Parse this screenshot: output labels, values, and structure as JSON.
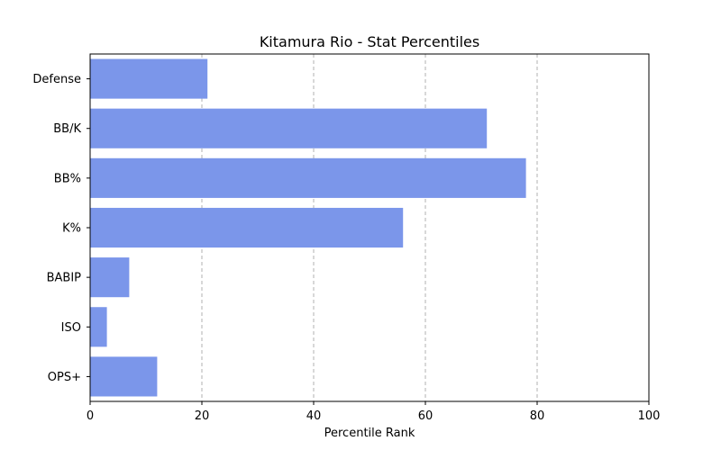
{
  "chart_data": {
    "type": "bar",
    "orientation": "horizontal",
    "title": "Kitamura Rio - Stat Percentiles",
    "xlabel": "Percentile Rank",
    "ylabel": "",
    "categories": [
      "OPS+",
      "ISO",
      "BABIP",
      "K%",
      "BB%",
      "BB/K",
      "Defense"
    ],
    "values": [
      12,
      3,
      7,
      56,
      78,
      71,
      21
    ],
    "xlim": [
      0,
      100
    ],
    "xticks": [
      "0",
      "20",
      "40",
      "60",
      "80",
      "100"
    ],
    "grid": "x dashed",
    "legend": "none",
    "bar_color": "#7b96ea",
    "grid_color": "#b0b0b0"
  }
}
